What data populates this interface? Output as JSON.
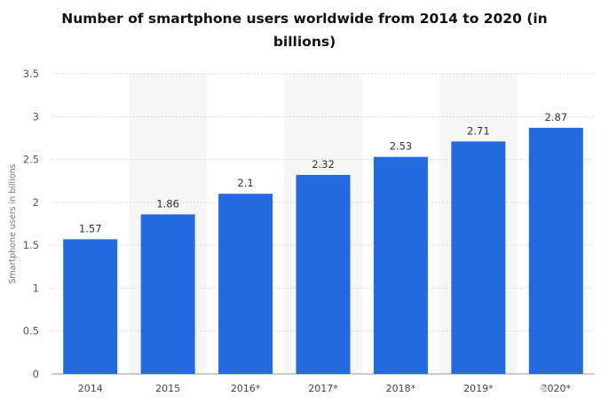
{
  "chart_data": {
    "type": "bar",
    "title": "Number of smartphone users worldwide from 2014 to 2020 (in billions)",
    "title_lines": [
      "Number of smartphone users worldwide from 2014 to 2020 (in",
      "billions)"
    ],
    "categories": [
      "2014",
      "2015",
      "2016*",
      "2017*",
      "2018*",
      "2019*",
      "2020*"
    ],
    "values": [
      1.57,
      1.86,
      2.1,
      2.32,
      2.53,
      2.71,
      2.87
    ],
    "value_labels": [
      "1.57",
      "1.86",
      "2.1",
      "2.32",
      "2.53",
      "2.71",
      "2.87"
    ],
    "ylabel": "Smartphone users in billions",
    "xlabel": "",
    "ylim": [
      0,
      3.5
    ],
    "yticks": [
      "0",
      "0.5",
      "1",
      "1.5",
      "2",
      "2.5",
      "3",
      "3.5"
    ],
    "ytick_values": [
      0,
      0.5,
      1,
      1.5,
      2,
      2.5,
      3,
      3.5
    ],
    "grid": true,
    "bar_color": "#2369e0"
  }
}
